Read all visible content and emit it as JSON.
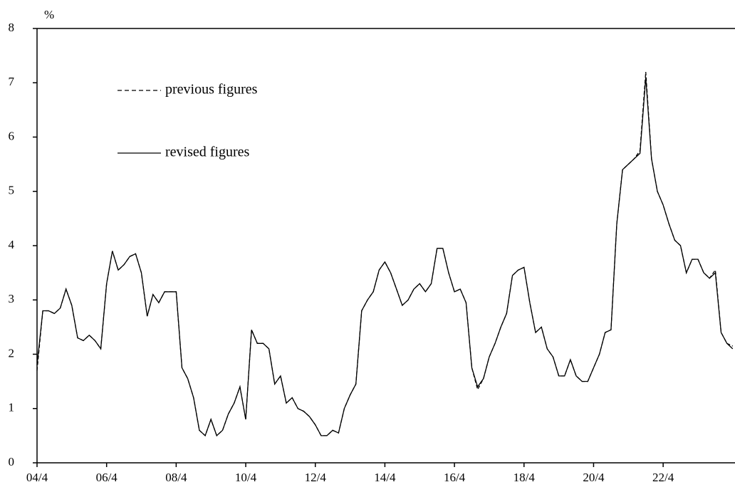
{
  "chart_data": {
    "type": "line",
    "y_label": "%",
    "categories": [
      "04/4",
      null,
      null,
      null,
      null,
      null,
      null,
      null,
      null,
      null,
      null,
      null,
      "06/4",
      null,
      null,
      null,
      null,
      null,
      null,
      null,
      null,
      null,
      null,
      null,
      "08/4",
      null,
      null,
      null,
      null,
      null,
      null,
      null,
      null,
      null,
      null,
      null,
      "10/4",
      null,
      null,
      null,
      null,
      null,
      null,
      null,
      null,
      null,
      null,
      null,
      "12/4",
      null,
      null,
      null,
      null,
      null,
      null,
      null,
      null,
      null,
      null,
      null,
      "14/4",
      null,
      null,
      null,
      null,
      null,
      null,
      null,
      null,
      null,
      null,
      null,
      "16/4",
      null,
      null,
      null,
      null,
      null,
      null,
      null,
      null,
      null,
      null,
      null,
      "18/4",
      null,
      null,
      null,
      null,
      null,
      null,
      null,
      null,
      null,
      null,
      null,
      "20/4",
      null,
      null,
      null,
      null,
      null,
      null,
      null,
      null,
      null,
      null,
      null,
      "22/4",
      null,
      null,
      null,
      null,
      null,
      null,
      null,
      null,
      null,
      null,
      null,
      null
    ],
    "series": [
      {
        "name": "previous figures",
        "color": "#000000",
        "line_style": "dashed",
        "values": [
          1.7,
          2.8,
          2.8,
          2.75,
          2.85,
          3.2,
          2.9,
          2.3,
          2.25,
          2.35,
          2.25,
          2.1,
          3.3,
          3.9,
          3.55,
          3.65,
          3.8,
          3.85,
          3.5,
          2.7,
          3.1,
          2.95,
          3.15,
          3.15,
          3.15,
          1.75,
          1.55,
          1.2,
          0.6,
          0.5,
          0.8,
          0.5,
          0.6,
          0.9,
          1.1,
          1.4,
          0.8,
          2.45,
          2.2,
          2.2,
          2.1,
          1.45,
          1.6,
          1.1,
          1.2,
          1.0,
          0.95,
          0.85,
          0.7,
          0.5,
          0.5,
          0.6,
          0.55,
          1.0,
          1.25,
          1.45,
          2.8,
          3.0,
          3.15,
          3.55,
          3.7,
          3.5,
          3.2,
          2.9,
          3.0,
          3.2,
          3.3,
          3.15,
          3.3,
          3.95,
          3.95,
          3.5,
          3.15,
          3.2,
          2.95,
          1.75,
          1.35,
          1.55,
          1.95,
          2.2,
          2.5,
          2.75,
          3.45,
          3.55,
          3.6,
          2.95,
          2.4,
          2.5,
          2.1,
          1.95,
          1.6,
          1.6,
          1.9,
          1.6,
          1.5,
          1.5,
          1.75,
          2.0,
          2.4,
          2.45,
          4.4,
          5.4,
          5.5,
          5.6,
          5.75,
          7.2,
          5.6,
          5.0,
          4.75,
          4.4,
          4.1,
          4.0,
          3.5,
          3.75,
          3.75,
          3.5,
          3.4,
          3.55,
          2.4,
          2.2,
          2.15
        ]
      },
      {
        "name": "revised figures",
        "color": "#000000",
        "line_style": "solid",
        "values": [
          1.8,
          2.8,
          2.8,
          2.75,
          2.85,
          3.2,
          2.9,
          2.3,
          2.25,
          2.35,
          2.25,
          2.1,
          3.3,
          3.9,
          3.55,
          3.65,
          3.8,
          3.85,
          3.5,
          2.7,
          3.1,
          2.95,
          3.15,
          3.15,
          3.15,
          1.75,
          1.55,
          1.2,
          0.6,
          0.5,
          0.8,
          0.5,
          0.6,
          0.9,
          1.1,
          1.4,
          0.8,
          2.45,
          2.2,
          2.2,
          2.1,
          1.45,
          1.6,
          1.1,
          1.2,
          1.0,
          0.95,
          0.85,
          0.7,
          0.5,
          0.5,
          0.6,
          0.55,
          1.0,
          1.25,
          1.45,
          2.8,
          3.0,
          3.15,
          3.55,
          3.7,
          3.5,
          3.2,
          2.9,
          3.0,
          3.2,
          3.3,
          3.15,
          3.3,
          3.95,
          3.95,
          3.5,
          3.15,
          3.2,
          2.95,
          1.75,
          1.4,
          1.55,
          1.95,
          2.2,
          2.5,
          2.75,
          3.45,
          3.55,
          3.6,
          2.95,
          2.4,
          2.5,
          2.1,
          1.95,
          1.6,
          1.6,
          1.9,
          1.6,
          1.5,
          1.5,
          1.75,
          2.0,
          2.4,
          2.45,
          4.4,
          5.4,
          5.5,
          5.6,
          5.7,
          7.1,
          5.6,
          5.0,
          4.75,
          4.4,
          4.1,
          4.0,
          3.5,
          3.75,
          3.75,
          3.5,
          3.4,
          3.5,
          2.4,
          2.2,
          2.1
        ]
      }
    ],
    "ylim": [
      0,
      8
    ],
    "yticks": [
      0,
      1,
      2,
      3,
      4,
      5,
      6,
      7,
      8
    ],
    "grid": false
  }
}
